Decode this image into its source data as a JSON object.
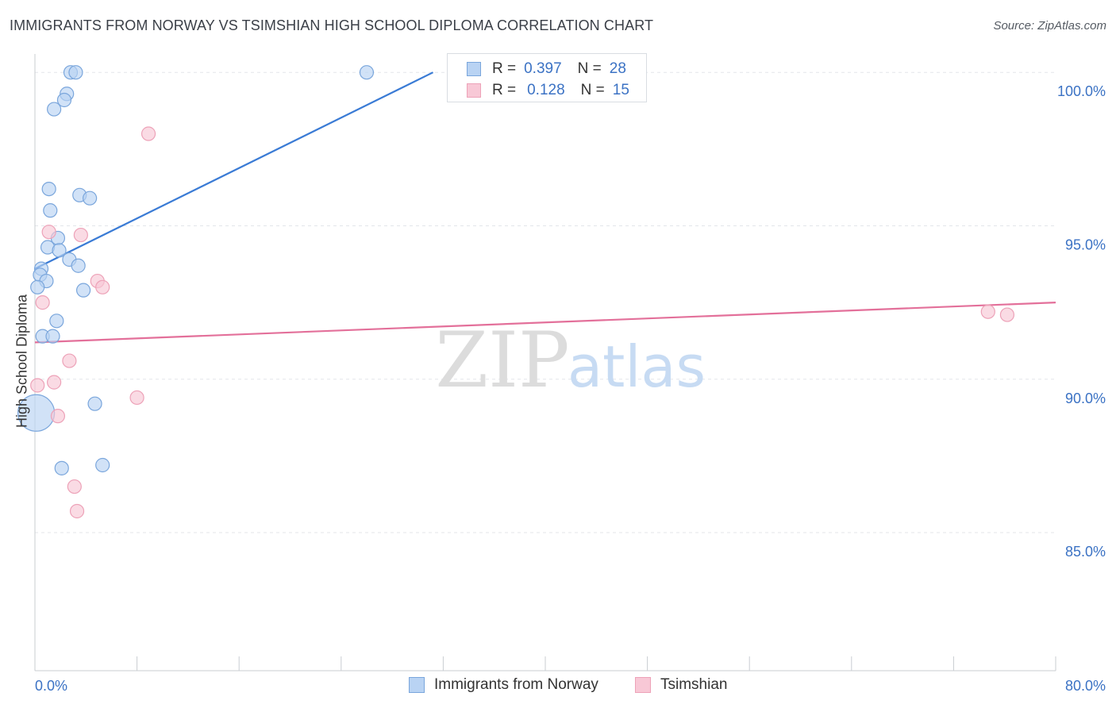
{
  "header": {
    "title": "IMMIGRANTS FROM NORWAY VS TSIMSHIAN HIGH SCHOOL DIPLOMA CORRELATION CHART",
    "source": "Source: ZipAtlas.com"
  },
  "watermark": {
    "zip": "ZIP",
    "atlas": "atlas"
  },
  "legend": {
    "rows": [
      {
        "r_label": "R =",
        "r_value": "0.397",
        "n_label": "N =",
        "n_value": "28"
      },
      {
        "r_label": "R =",
        "r_value": "0.128",
        "n_label": "N =",
        "n_value": "15"
      }
    ]
  },
  "colors": {
    "norway_fill": "#b9d3f3",
    "norway_stroke": "#7aa6dc",
    "norway_line": "#3a7bd5",
    "tsimshian_fill": "#f8c8d6",
    "tsimshian_stroke": "#eda2b8",
    "tsimshian_line": "#e3709a",
    "tick_label": "#3b72c4",
    "grid": "#e3e6ea"
  },
  "chart_data": {
    "type": "scatter",
    "title": "IMMIGRANTS FROM NORWAY VS TSIMSHIAN HIGH SCHOOL DIPLOMA CORRELATION CHART",
    "xlabel": "",
    "ylabel": "High School Diploma",
    "xlim": [
      0,
      80
    ],
    "ylim": [
      80.5,
      100.6
    ],
    "x_tick_labels": [
      "0.0%",
      "80.0%"
    ],
    "y_ticks": [
      {
        "value": 85,
        "label": "85.0%"
      },
      {
        "value": 90,
        "label": "90.0%"
      },
      {
        "value": 95,
        "label": "95.0%"
      },
      {
        "value": 100,
        "label": "100.0%"
      }
    ],
    "grid": true,
    "legend_position": "top-center",
    "series": [
      {
        "name": "Immigrants from Norway",
        "r": 0.397,
        "n": 28,
        "trend": {
          "x": [
            0,
            31.2
          ],
          "y": [
            93.6,
            100.0
          ]
        },
        "points": [
          {
            "x": 2.8,
            "y": 100.0
          },
          {
            "x": 3.2,
            "y": 100.0
          },
          {
            "x": 26.0,
            "y": 100.0
          },
          {
            "x": 33.0,
            "y": 100.0
          },
          {
            "x": 2.5,
            "y": 99.3
          },
          {
            "x": 2.3,
            "y": 99.1
          },
          {
            "x": 1.5,
            "y": 98.8
          },
          {
            "x": 1.1,
            "y": 96.2
          },
          {
            "x": 3.5,
            "y": 96.0
          },
          {
            "x": 4.3,
            "y": 95.9
          },
          {
            "x": 1.2,
            "y": 95.5
          },
          {
            "x": 1.8,
            "y": 94.6
          },
          {
            "x": 1.0,
            "y": 94.3
          },
          {
            "x": 1.9,
            "y": 94.2
          },
          {
            "x": 2.7,
            "y": 93.9
          },
          {
            "x": 3.4,
            "y": 93.7
          },
          {
            "x": 0.5,
            "y": 93.6
          },
          {
            "x": 0.4,
            "y": 93.4
          },
          {
            "x": 0.9,
            "y": 93.2
          },
          {
            "x": 0.2,
            "y": 93.0
          },
          {
            "x": 3.8,
            "y": 92.9
          },
          {
            "x": 1.7,
            "y": 91.9
          },
          {
            "x": 0.6,
            "y": 91.4
          },
          {
            "x": 1.4,
            "y": 91.4
          },
          {
            "x": 0.1,
            "y": 88.9,
            "large": true
          },
          {
            "x": 4.7,
            "y": 89.2
          },
          {
            "x": 2.1,
            "y": 87.1
          },
          {
            "x": 5.3,
            "y": 87.2
          }
        ]
      },
      {
        "name": "Tsimshian",
        "r": 0.128,
        "n": 15,
        "trend": {
          "x": [
            0,
            80
          ],
          "y": [
            91.2,
            92.5
          ]
        },
        "points": [
          {
            "x": 8.9,
            "y": 98.0
          },
          {
            "x": 1.1,
            "y": 94.8
          },
          {
            "x": 3.6,
            "y": 94.7
          },
          {
            "x": 4.9,
            "y": 93.2
          },
          {
            "x": 5.3,
            "y": 93.0
          },
          {
            "x": 0.6,
            "y": 92.5
          },
          {
            "x": 74.7,
            "y": 92.2
          },
          {
            "x": 76.2,
            "y": 92.1
          },
          {
            "x": 2.7,
            "y": 90.6
          },
          {
            "x": 0.2,
            "y": 89.8
          },
          {
            "x": 1.5,
            "y": 89.9
          },
          {
            "x": 8.0,
            "y": 89.4
          },
          {
            "x": 1.8,
            "y": 88.8
          },
          {
            "x": 3.1,
            "y": 86.5
          },
          {
            "x": 3.3,
            "y": 85.7
          }
        ]
      }
    ]
  }
}
